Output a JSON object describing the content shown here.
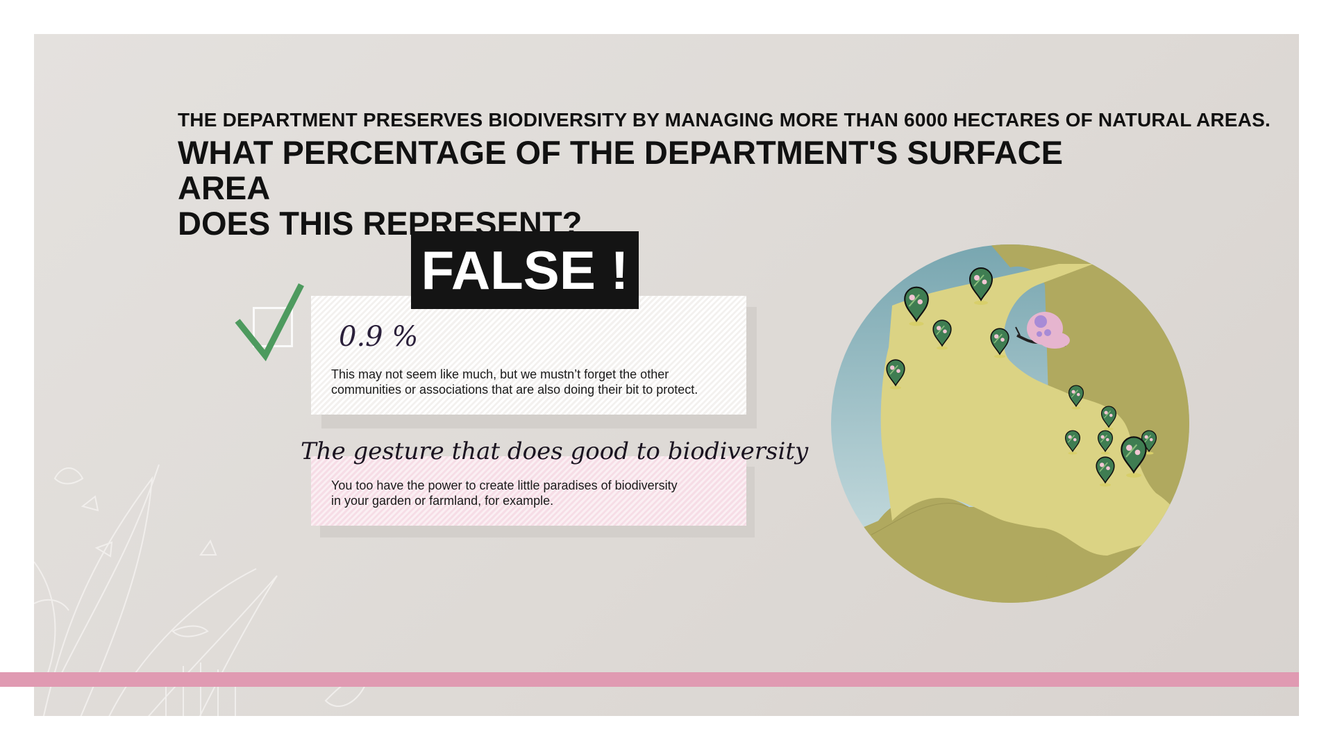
{
  "header": {
    "subtitle": "THE DEPARTMENT PRESERVES BIODIVERSITY BY MANAGING MORE THAN 6000 HECTARES OF NATURAL AREAS.",
    "title_line1": "WHAT PERCENTAGE OF THE DEPARTMENT'S SURFACE AREA",
    "title_line2": "DOES THIS REPRESENT?"
  },
  "result": {
    "badge": "FALSE !",
    "answer": "0.9 %",
    "explanation_line1": "This may not seem like much, but we mustn’t forget the other",
    "explanation_line2": "communities or associations that are also doing their bit to protect."
  },
  "gesture": {
    "heading": "The gesture that does good to biodiversity",
    "text_line1": "You too have the power to create little paradises of biodiversity",
    "text_line2": "in your garden or farmland, for example."
  },
  "colors": {
    "accent_pink": "#e09ab2",
    "check_green": "#4d9a5e",
    "sea": "#7aa8b2",
    "land_light": "#dbd384",
    "land_dark": "#b0a95f"
  },
  "icons": [
    "checkmark-icon",
    "checkbox-icon",
    "flower-pin-icon",
    "butterfly-icon",
    "leaf-decoration"
  ]
}
